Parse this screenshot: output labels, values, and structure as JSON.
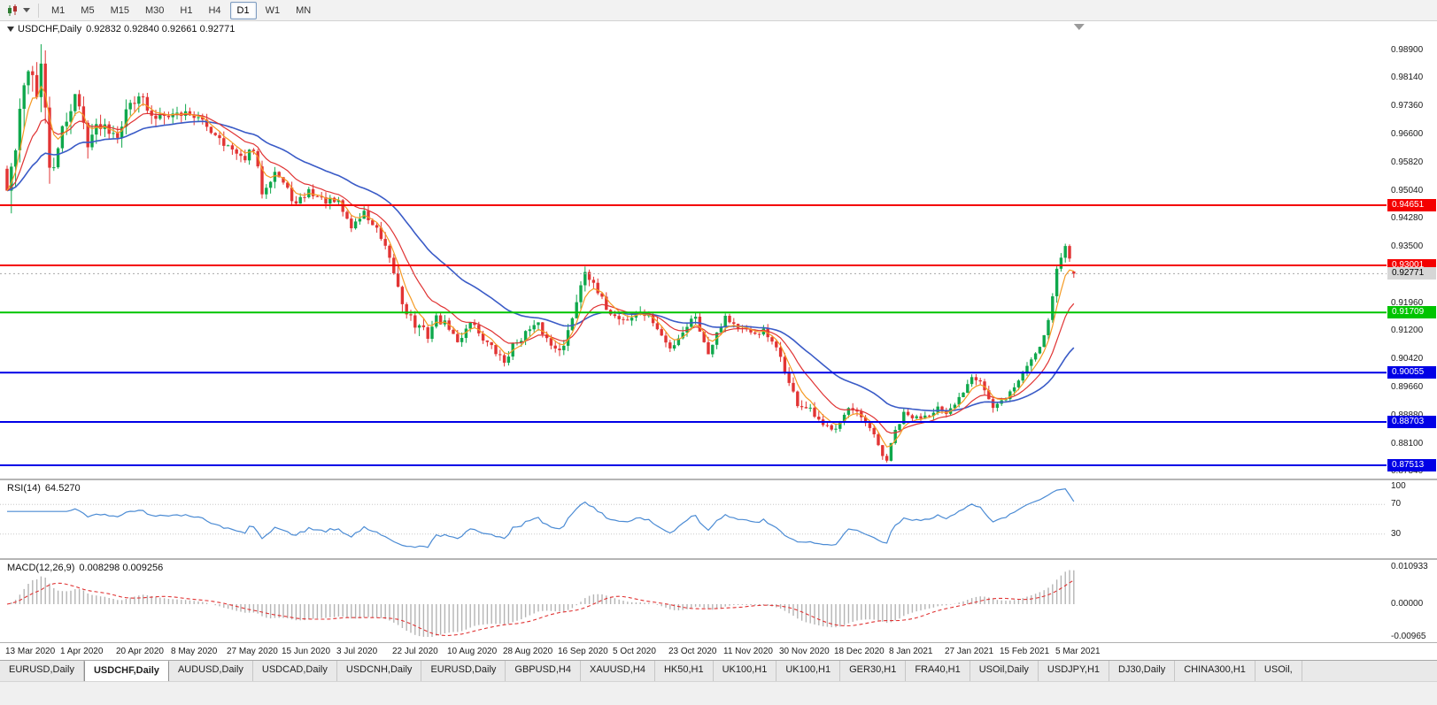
{
  "toolbar": {
    "timeframes": [
      "M1",
      "M5",
      "M15",
      "M30",
      "H1",
      "H4",
      "D1",
      "W1",
      "MN"
    ],
    "active_timeframe": "D1"
  },
  "chart": {
    "title": "USDCHF,Daily",
    "ohlc": "0.92832 0.92840 0.92661 0.92771"
  },
  "price_axis": [
    "0.98900",
    "0.98140",
    "0.97360",
    "0.96600",
    "0.95820",
    "0.95040",
    "0.94280",
    "0.93500",
    "0.92720",
    "0.91960",
    "0.91200",
    "0.90420",
    "0.89660",
    "0.88880",
    "0.88100",
    "0.87340"
  ],
  "levels": [
    {
      "value": 0.94651,
      "label": "0.94651",
      "color": "red"
    },
    {
      "value": 0.93001,
      "label": "0.93001",
      "color": "red"
    },
    {
      "value": 0.91709,
      "label": "0.91709",
      "color": "green"
    },
    {
      "value": 0.90055,
      "label": "0.90055",
      "color": "blue"
    },
    {
      "value": 0.88703,
      "label": "0.88703",
      "color": "blue"
    },
    {
      "value": 0.87513,
      "label": "0.87513",
      "color": "blue"
    }
  ],
  "current_price": {
    "value": 0.92771,
    "label": "0.92771"
  },
  "indicators": {
    "rsi": {
      "title": "RSI(14)",
      "value": "64.5270",
      "axis": [
        "100",
        "70",
        "30"
      ],
      "level_lines": [
        70,
        30
      ]
    },
    "macd": {
      "title": "MACD(12,26,9)",
      "values": "0.008298 0.009256",
      "axis_labels": [
        "0.010933",
        "0.00000",
        "-0.00965"
      ],
      "axis_values": [
        0.010933,
        0,
        -0.00965
      ]
    }
  },
  "time_axis": [
    [
      0,
      "13 Mar 2020"
    ],
    [
      13,
      "1 Apr 2020"
    ],
    [
      26,
      "20 Apr 2020"
    ],
    [
      39,
      "8 May 2020"
    ],
    [
      52,
      "27 May 2020"
    ],
    [
      65,
      "15 Jun 2020"
    ],
    [
      78,
      "3 Jul 2020"
    ],
    [
      91,
      "22 Jul 2020"
    ],
    [
      104,
      "10 Aug 2020"
    ],
    [
      117,
      "28 Aug 2020"
    ],
    [
      130,
      "16 Sep 2020"
    ],
    [
      143,
      "5 Oct 2020"
    ],
    [
      156,
      "23 Oct 2020"
    ],
    [
      169,
      "11 Nov 2020"
    ],
    [
      182,
      "30 Nov 2020"
    ],
    [
      195,
      "18 Dec 2020"
    ],
    [
      208,
      "8 Jan 2021"
    ],
    [
      221,
      "27 Jan 2021"
    ],
    [
      234,
      "15 Feb 2021"
    ],
    [
      247,
      "5 Mar 2021"
    ]
  ],
  "tabs": [
    {
      "label": "EURUSD,Daily",
      "active": false
    },
    {
      "label": "USDCHF,Daily",
      "active": true
    },
    {
      "label": "AUDUSD,Daily",
      "active": false
    },
    {
      "label": "USDCAD,Daily",
      "active": false
    },
    {
      "label": "USDCNH,Daily",
      "active": false
    },
    {
      "label": "EURUSD,Daily",
      "active": false
    },
    {
      "label": "GBPUSD,H4",
      "active": false
    },
    {
      "label": "XAUUSD,H4",
      "active": false
    },
    {
      "label": "HK50,H1",
      "active": false
    },
    {
      "label": "UK100,H1",
      "active": false
    },
    {
      "label": "UK100,H1",
      "active": false
    },
    {
      "label": "GER30,H1",
      "active": false
    },
    {
      "label": "FRA40,H1",
      "active": false
    },
    {
      "label": "USOil,Daily",
      "active": false
    },
    {
      "label": "USDJPY,H1",
      "active": false
    },
    {
      "label": "DJ30,Daily",
      "active": false
    },
    {
      "label": "CHINA300,H1",
      "active": false
    },
    {
      "label": "USOil,",
      "active": false
    }
  ],
  "colors": {
    "candle_up": "#0fa84c",
    "candle_down": "#e23434",
    "rsi_line": "#4b8bd4",
    "macd_histogram": "#b4b4b4",
    "macd_signal": "#e03434",
    "current_price_line": "#a8a8a8",
    "current_price_tag_bg": "#d6d6d6",
    "level_red": "#f40000",
    "level_green": "#00c400",
    "level_blue": "#0000e6"
  },
  "chart_data": {
    "type": "candlestick",
    "symbol": "USDCHF",
    "timeframe": "Daily",
    "bars": 252,
    "ylim": [
      0.8715,
      0.997
    ],
    "noise_seed": 42,
    "last_candle": {
      "open": 0.92832,
      "high": 0.9284,
      "low": 0.92661,
      "close": 0.92771
    },
    "ma_lines": [
      {
        "period": 34,
        "color": "#3a5bc7",
        "width": 1.6,
        "name": "slow-ma"
      },
      {
        "period": 13,
        "color": "#e03434",
        "width": 1.2,
        "name": "mid-ma"
      },
      {
        "period": 5,
        "color": "#f59a23",
        "width": 1.2,
        "name": "fast-ma"
      }
    ],
    "price_anchors": [
      [
        0,
        0.9505,
        0.012
      ],
      [
        2,
        0.962,
        0.012
      ],
      [
        5,
        0.986,
        0.012
      ],
      [
        7,
        0.978,
        0.0115
      ],
      [
        8,
        0.9845,
        0.01
      ],
      [
        10,
        0.957,
        0.01
      ],
      [
        12,
        0.96,
        0.008
      ],
      [
        13,
        0.967,
        0.007
      ],
      [
        16,
        0.977,
        0.006
      ],
      [
        19,
        0.9645,
        0.006
      ],
      [
        22,
        0.969,
        0.005
      ],
      [
        26,
        0.9665,
        0.005
      ],
      [
        29,
        0.9745,
        0.005
      ],
      [
        31,
        0.9775,
        0.005
      ],
      [
        34,
        0.97,
        0.005
      ],
      [
        37,
        0.9725,
        0.0045
      ],
      [
        39,
        0.9715,
        0.004
      ],
      [
        43,
        0.972,
        0.004
      ],
      [
        47,
        0.968,
        0.004
      ],
      [
        50,
        0.9655,
        0.004
      ],
      [
        52,
        0.9625,
        0.004
      ],
      [
        55,
        0.959,
        0.0035
      ],
      [
        58,
        0.9615,
        0.0035
      ],
      [
        60,
        0.9505,
        0.004
      ],
      [
        63,
        0.956,
        0.0035
      ],
      [
        65,
        0.9525,
        0.003
      ],
      [
        68,
        0.9465,
        0.003
      ],
      [
        71,
        0.9505,
        0.003
      ],
      [
        74,
        0.948,
        0.003
      ],
      [
        78,
        0.947,
        0.003
      ],
      [
        81,
        0.9405,
        0.003
      ],
      [
        84,
        0.9445,
        0.003
      ],
      [
        87,
        0.9395,
        0.0035
      ],
      [
        89,
        0.934,
        0.004
      ],
      [
        91,
        0.928,
        0.004
      ],
      [
        93,
        0.92,
        0.0045
      ],
      [
        96,
        0.9135,
        0.0045
      ],
      [
        99,
        0.911,
        0.004
      ],
      [
        101,
        0.9155,
        0.0035
      ],
      [
        104,
        0.913,
        0.003
      ],
      [
        106,
        0.9085,
        0.003
      ],
      [
        109,
        0.915,
        0.003
      ],
      [
        112,
        0.91,
        0.003
      ],
      [
        115,
        0.906,
        0.003
      ],
      [
        117,
        0.9035,
        0.003
      ],
      [
        119,
        0.908,
        0.003
      ],
      [
        122,
        0.9115,
        0.003
      ],
      [
        125,
        0.9135,
        0.003
      ],
      [
        128,
        0.908,
        0.003
      ],
      [
        131,
        0.9075,
        0.003
      ],
      [
        133,
        0.916,
        0.0035
      ],
      [
        135,
        0.925,
        0.004
      ],
      [
        136,
        0.9295,
        0.004
      ],
      [
        138,
        0.924,
        0.0035
      ],
      [
        141,
        0.9185,
        0.003
      ],
      [
        143,
        0.916,
        0.003
      ],
      [
        146,
        0.915,
        0.003
      ],
      [
        149,
        0.9175,
        0.003
      ],
      [
        152,
        0.9145,
        0.003
      ],
      [
        154,
        0.9105,
        0.003
      ],
      [
        156,
        0.907,
        0.003
      ],
      [
        159,
        0.912,
        0.003
      ],
      [
        162,
        0.9165,
        0.003
      ],
      [
        164,
        0.9085,
        0.003
      ],
      [
        165,
        0.906,
        0.003
      ],
      [
        167,
        0.912,
        0.003
      ],
      [
        169,
        0.916,
        0.003
      ],
      [
        172,
        0.913,
        0.0028
      ],
      [
        175,
        0.911,
        0.0028
      ],
      [
        178,
        0.912,
        0.0025
      ],
      [
        180,
        0.9085,
        0.0025
      ],
      [
        182,
        0.905,
        0.0028
      ],
      [
        184,
        0.8975,
        0.003
      ],
      [
        186,
        0.892,
        0.003
      ],
      [
        189,
        0.89,
        0.0028
      ],
      [
        192,
        0.8855,
        0.0028
      ],
      [
        195,
        0.886,
        0.0028
      ],
      [
        198,
        0.8905,
        0.0028
      ],
      [
        200,
        0.889,
        0.0026
      ],
      [
        202,
        0.8865,
        0.0026
      ],
      [
        204,
        0.883,
        0.0026
      ],
      [
        206,
        0.878,
        0.0028
      ],
      [
        207,
        0.8765,
        0.0028
      ],
      [
        209,
        0.8845,
        0.0028
      ],
      [
        211,
        0.889,
        0.0026
      ],
      [
        214,
        0.888,
        0.0024
      ],
      [
        217,
        0.8895,
        0.0024
      ],
      [
        219,
        0.891,
        0.0024
      ],
      [
        221,
        0.8885,
        0.0024
      ],
      [
        224,
        0.8935,
        0.0024
      ],
      [
        227,
        0.9,
        0.0026
      ],
      [
        229,
        0.8985,
        0.0024
      ],
      [
        232,
        0.8905,
        0.0026
      ],
      [
        234,
        0.8925,
        0.0024
      ],
      [
        237,
        0.8965,
        0.0024
      ],
      [
        240,
        0.9025,
        0.0026
      ],
      [
        243,
        0.908,
        0.0026
      ],
      [
        245,
        0.915,
        0.0028
      ],
      [
        247,
        0.929,
        0.0032
      ],
      [
        249,
        0.935,
        0.0032
      ],
      [
        250,
        0.932,
        0.0028
      ],
      [
        251,
        0.9277,
        0.0025
      ]
    ],
    "horizontal_levels": [
      0.94651,
      0.93001,
      0.91709,
      0.90055,
      0.88703,
      0.87513
    ],
    "rsi": {
      "period": 14,
      "current": 64.527
    },
    "macd": {
      "fast": 12,
      "slow": 26,
      "signal": 9,
      "current_macd": 0.008298,
      "current_signal": 0.009256,
      "range": [
        -0.00965,
        0.010933
      ]
    }
  }
}
